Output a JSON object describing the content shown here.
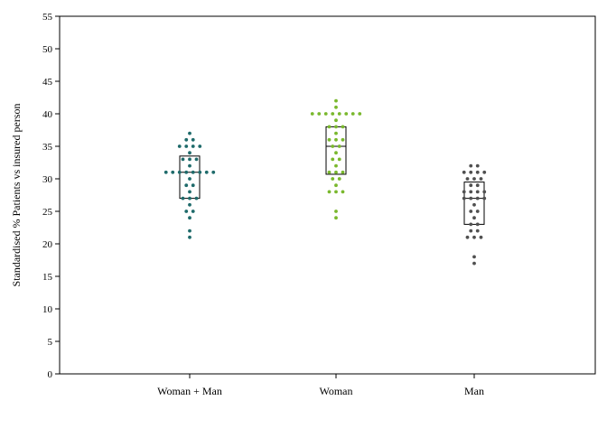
{
  "chart_data": {
    "type": "dot-box",
    "title": "",
    "xlabel": "",
    "ylabel": "Standardised % Patients vs insured person",
    "ylim": [
      0,
      55
    ],
    "yticks": [
      0,
      5,
      10,
      15,
      20,
      25,
      30,
      35,
      40,
      45,
      50,
      55
    ],
    "grid": false,
    "legend": "none",
    "categories": [
      "Woman + Man",
      "Woman",
      "Man"
    ],
    "series": [
      {
        "category": "Woman + Man",
        "color": "#1f6b6b",
        "box": {
          "q1": 27,
          "median": 31,
          "q3": 33.5
        },
        "points": [
          37,
          36,
          36,
          35,
          35,
          35,
          35,
          34,
          33,
          33,
          33,
          32,
          31,
          31,
          31,
          31,
          31,
          31,
          31,
          31,
          30,
          29,
          29,
          28,
          27,
          27,
          27,
          26,
          25,
          25,
          24,
          22,
          21
        ]
      },
      {
        "category": "Woman",
        "color": "#7ab82e",
        "box": {
          "q1": 30.7,
          "median": 35,
          "q3": 38
        },
        "points": [
          42,
          41,
          40,
          40,
          40,
          40,
          40,
          40,
          40,
          40,
          39,
          38,
          38,
          38,
          37,
          36,
          36,
          36,
          35,
          35,
          34,
          33,
          33,
          32,
          31,
          31,
          31,
          30,
          30,
          29,
          28,
          28,
          28,
          25,
          24
        ]
      },
      {
        "category": "Man",
        "color": "#505050",
        "box": {
          "q1": 23,
          "median": 27,
          "q3": 29.5
        },
        "points": [
          32,
          32,
          31,
          31,
          31,
          31,
          30,
          30,
          30,
          29,
          29,
          28,
          28,
          28,
          28,
          27,
          27,
          27,
          27,
          26,
          25,
          25,
          24,
          23,
          23,
          22,
          22,
          21,
          21,
          21,
          18,
          17
        ]
      }
    ]
  }
}
